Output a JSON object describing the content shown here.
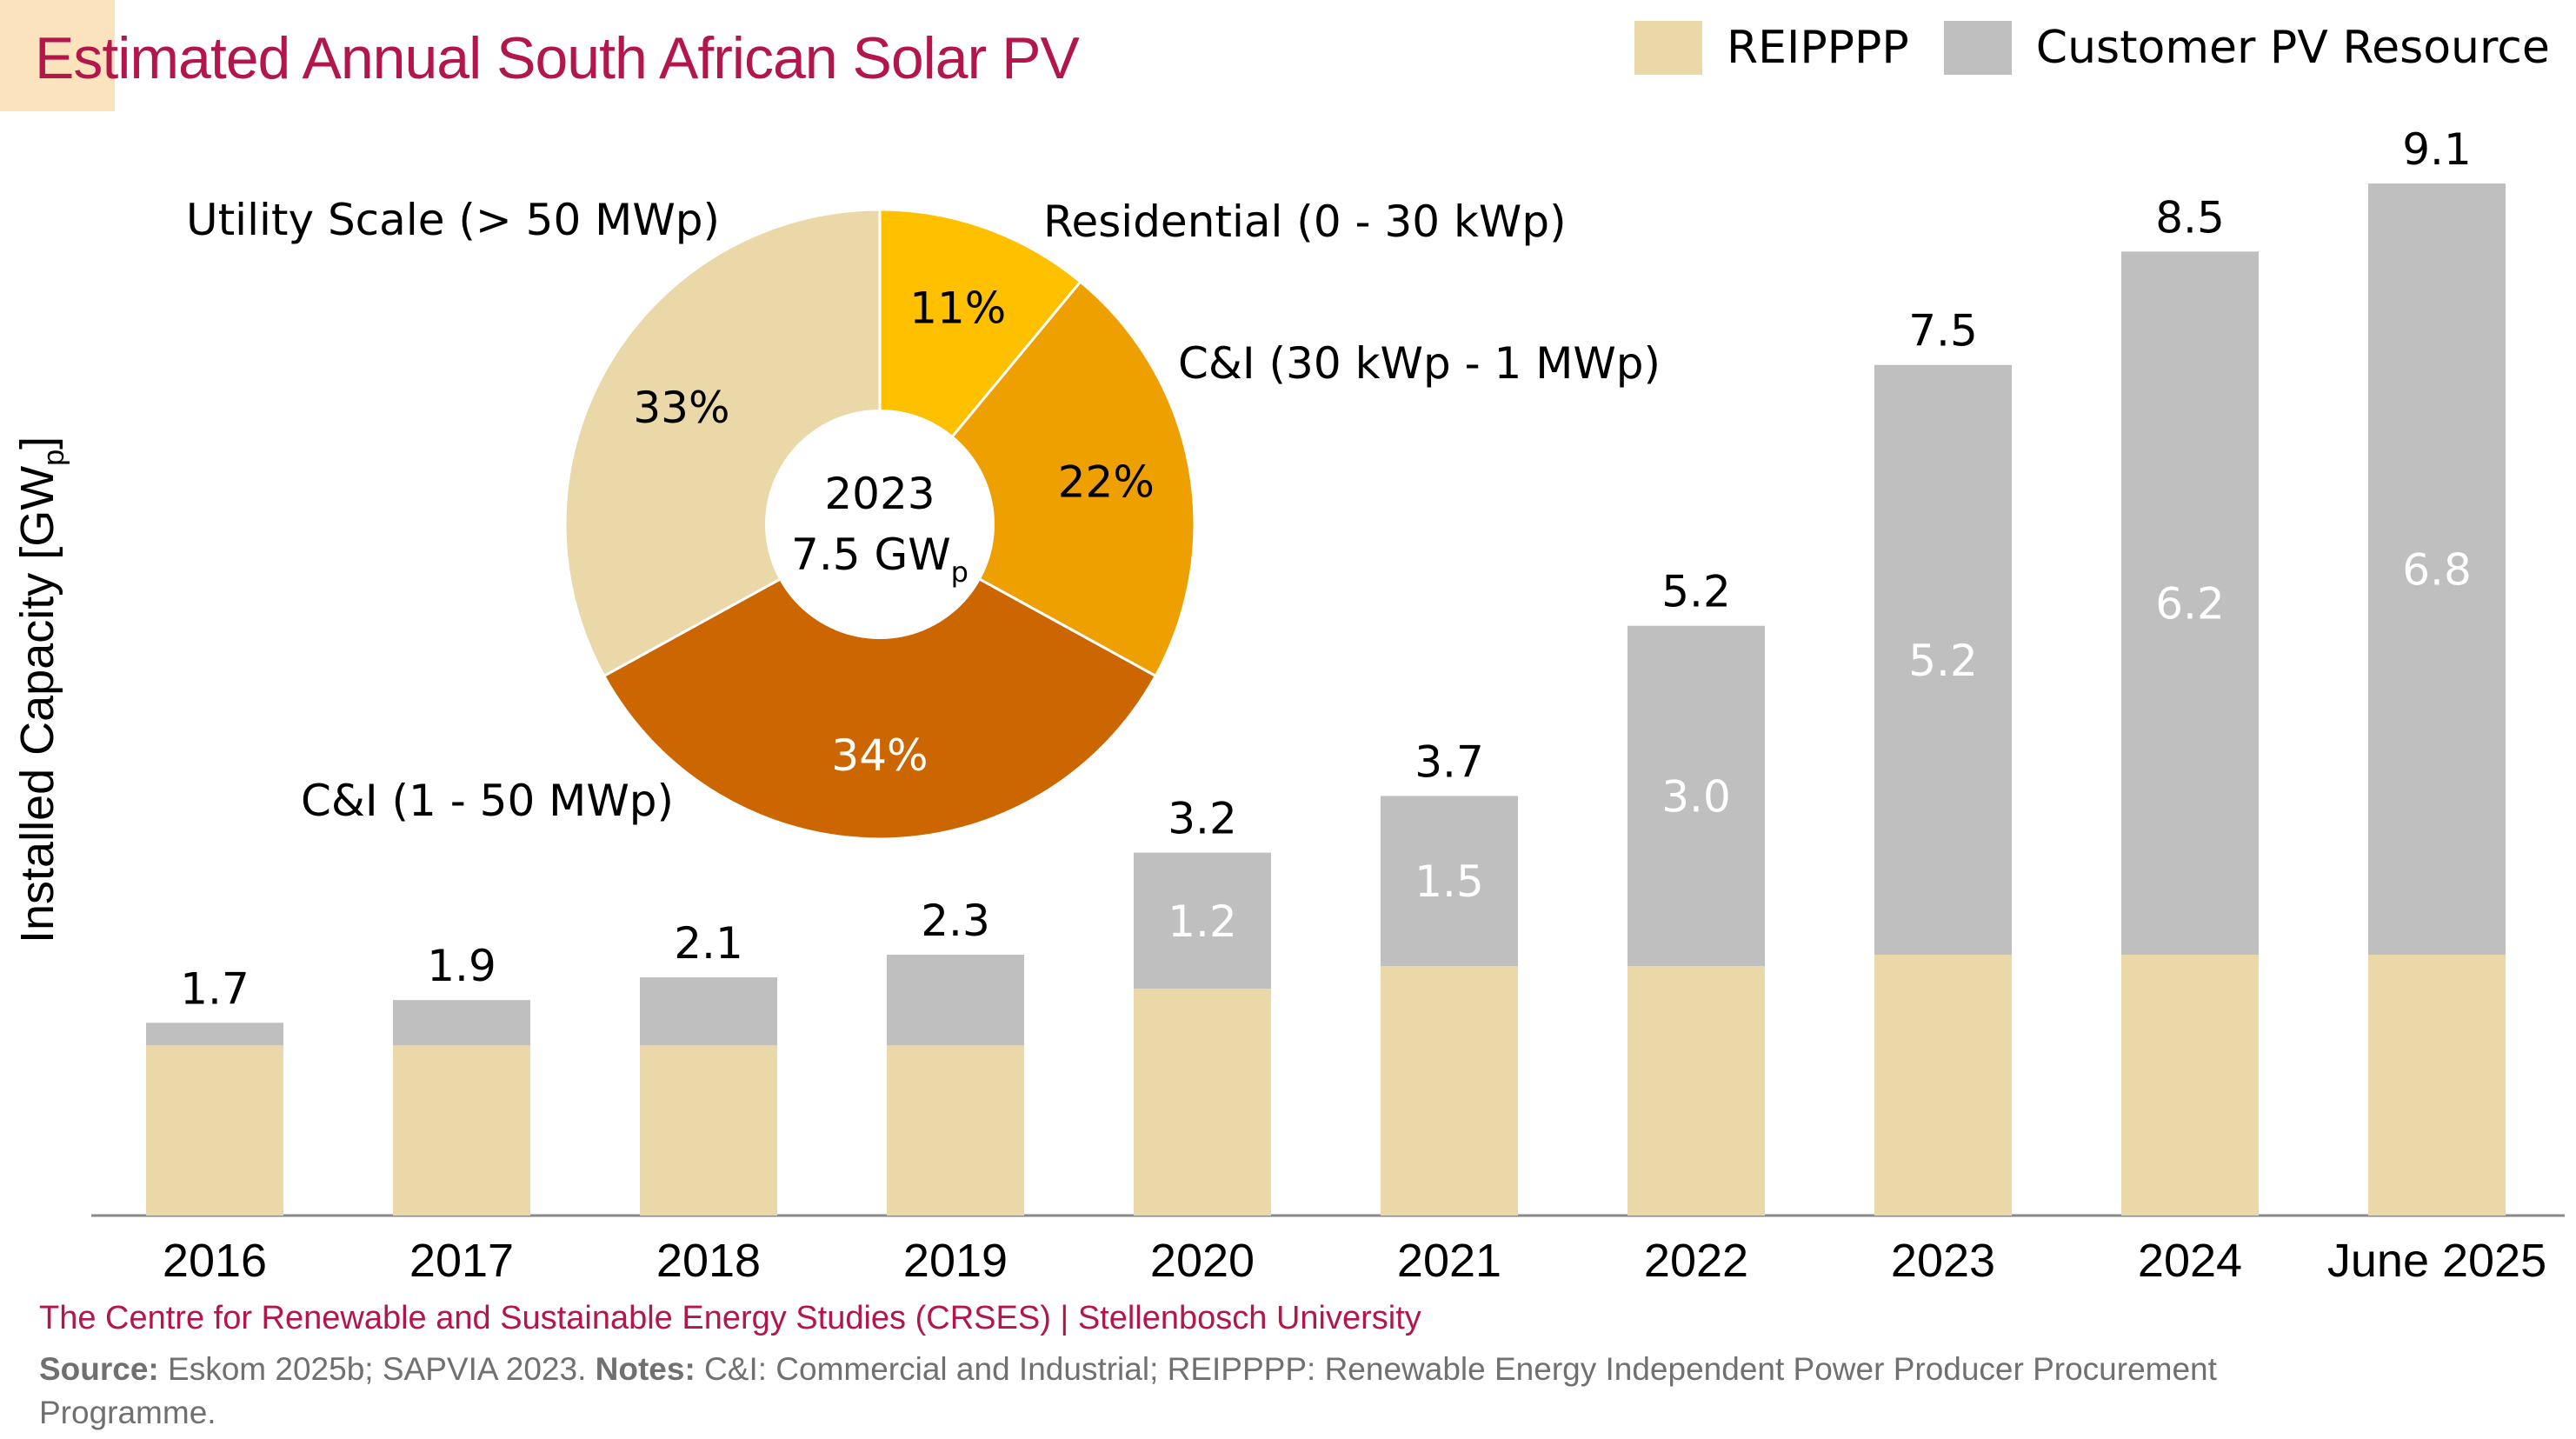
{
  "title": "Estimated Annual South African Solar PV",
  "colors": {
    "reipppp": "#ead8a8",
    "customer_pv": "#bfbfbf",
    "title": "#b2164a",
    "title_accent": "#fbe3bd",
    "pie_residential": "#ffc000",
    "pie_ci_small": "#eda000",
    "pie_ci_large": "#cc6600",
    "pie_utility": "#ead8a8"
  },
  "legend": [
    {
      "label": "REIPPPP",
      "color": "#ead8a8"
    },
    {
      "label": "Customer PV Resource",
      "color": "#bfbfbf"
    }
  ],
  "y_axis": {
    "label_main": "Installed Capacity [GW",
    "label_sub": "p",
    "label_end": "]"
  },
  "footer": {
    "org": "The Centre for Renewable and Sustainable Energy Studies (CRSES) | Stellenbosch University",
    "source_label": "Source:",
    "source_text": " Eskom 2025b; SAPVIA 2023. ",
    "notes_label": "Notes:",
    "notes_text": " C&I: Commercial and Industrial; REIPPPP: Renewable Energy Independent Power Producer Procurement Programme."
  },
  "chart_data": [
    {
      "type": "bar",
      "stacked": true,
      "categories": [
        "2016",
        "2017",
        "2018",
        "2019",
        "2020",
        "2021",
        "2022",
        "2023",
        "2024",
        "June 2025"
      ],
      "series": [
        {
          "name": "REIPPPP",
          "values": [
            1.5,
            1.5,
            1.5,
            1.5,
            2.0,
            2.2,
            2.2,
            2.3,
            2.3,
            2.3
          ]
        },
        {
          "name": "Customer PV Resource",
          "values": [
            0.2,
            0.4,
            0.6,
            0.8,
            1.2,
            1.5,
            3.0,
            5.2,
            6.2,
            6.8
          ]
        }
      ],
      "totals": [
        "1.7",
        "1.9",
        "2.1",
        "2.3",
        "3.2",
        "3.7",
        "5.2",
        "7.5",
        "8.5",
        "9.1"
      ],
      "inner_labels": [
        "",
        "",
        "",
        "",
        "1.2",
        "1.5",
        "3.0",
        "5.2",
        "6.2",
        "6.8"
      ],
      "ylabel": "Installed Capacity [GWp]",
      "ylim": [
        0,
        9.5
      ],
      "grid": false,
      "legend_position": "top-right"
    },
    {
      "type": "pie",
      "donut": true,
      "center_text": {
        "line1": "2023",
        "line2_main": "7.5 GW",
        "line2_sub": "p"
      },
      "slices": [
        {
          "label": "Residential (0 - 30 kWp)",
          "value": 11,
          "display": "11%",
          "color": "#ffc000"
        },
        {
          "label": "C&I (30 kWp - 1 MWp)",
          "value": 22,
          "display": "22%",
          "color": "#eda000"
        },
        {
          "label": "C&I (1 - 50 MWp)",
          "value": 34,
          "display": "34%",
          "color": "#cc6600"
        },
        {
          "label": "Utility Scale (> 50 MWp)",
          "value": 33,
          "display": "33%",
          "color": "#ead8a8"
        }
      ]
    }
  ]
}
